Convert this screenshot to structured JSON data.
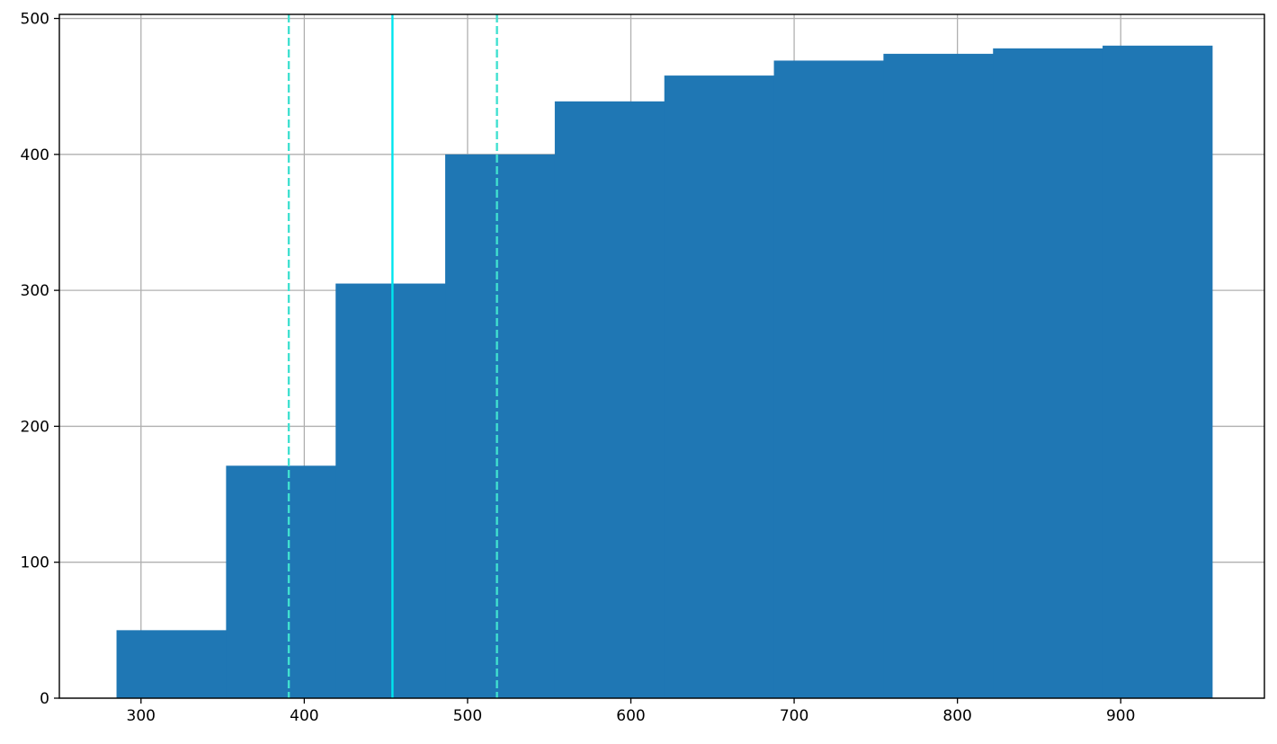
{
  "chart_data": {
    "type": "bar",
    "subtype": "cumulative histogram",
    "title": "",
    "xlabel": "",
    "ylabel": "",
    "xlim": [
      250,
      988
    ],
    "ylim": [
      0,
      503
    ],
    "x_ticks": [
      300,
      400,
      500,
      600,
      700,
      800,
      900
    ],
    "y_ticks": [
      0,
      100,
      200,
      300,
      400,
      500
    ],
    "bin_edges": [
      285,
      352.1,
      419.2,
      486.3,
      553.4,
      620.5,
      687.6,
      754.7,
      821.8,
      888.9,
      956
    ],
    "values": [
      50,
      171,
      305,
      400,
      439,
      458,
      469,
      474,
      478,
      480
    ],
    "vertical_lines": [
      {
        "x": 390.5,
        "style": "dashed",
        "color": "#40e0d0"
      },
      {
        "x": 454,
        "style": "solid",
        "color": "#00e5ee"
      },
      {
        "x": 518,
        "style": "dashed",
        "color": "#40e0d0"
      }
    ],
    "grid": true,
    "bar_color": "#1f77b4",
    "grid_color": "#b0b0b0"
  }
}
